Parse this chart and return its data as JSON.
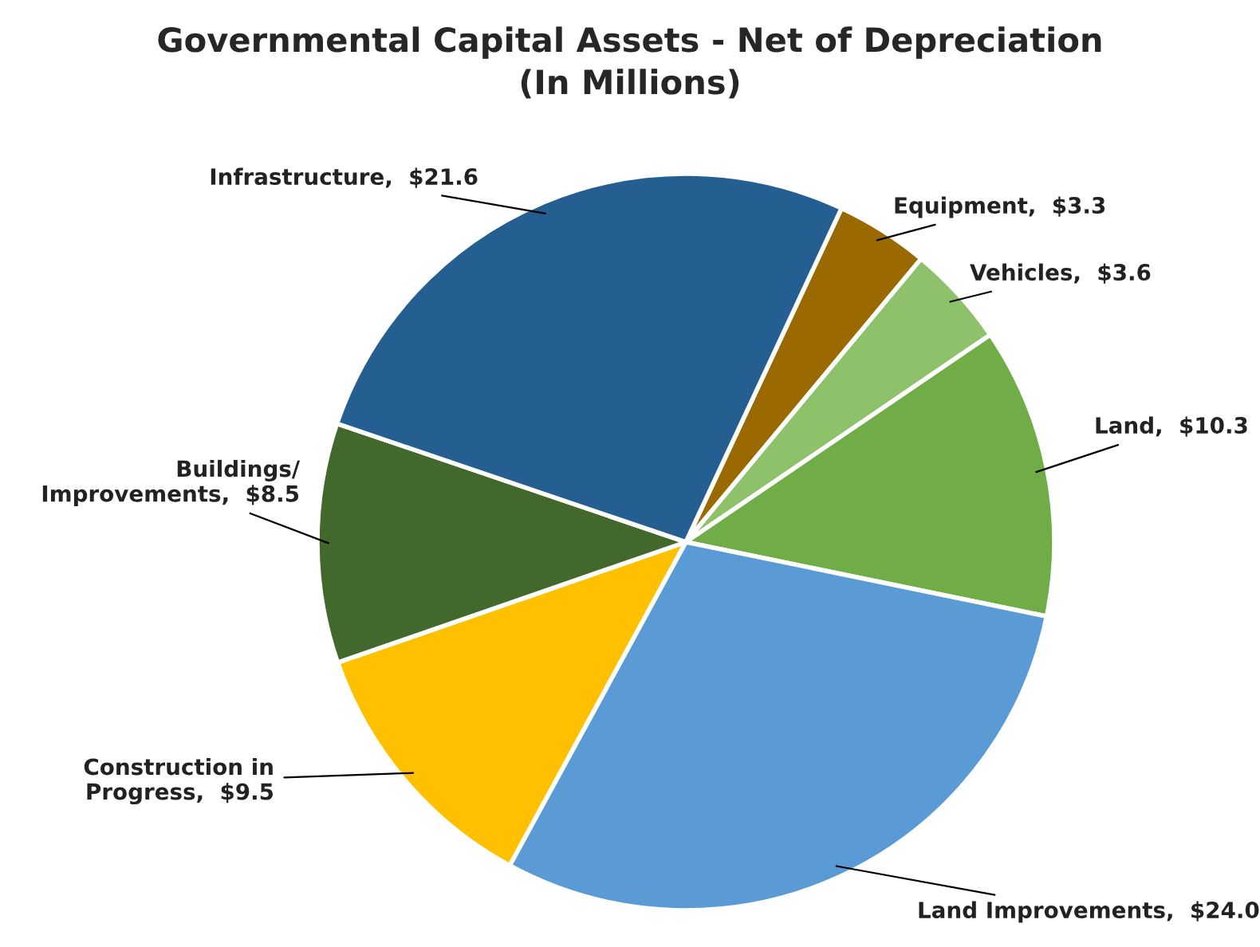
{
  "chart_data": {
    "type": "pie",
    "title": "Governmental Capital Assets - Net of Depreciation\n(In Millions)",
    "categories": [
      "Equipment",
      "Vehicles",
      "Land",
      "Land Improvements",
      "Construction in Progress",
      "Buildings/ Improvements",
      "Infrastructure"
    ],
    "values": [
      3.3,
      3.6,
      10.3,
      24.0,
      9.5,
      8.5,
      21.6
    ],
    "value_labels": [
      "$3.3",
      "$3.6",
      "$10.3",
      "$24.0",
      "$9.5",
      "$8.5",
      "$21.6"
    ],
    "colors": [
      "#9a6a00",
      "#8dc26a",
      "#70ad47",
      "#5b9bd5",
      "#ffc000",
      "#43682b",
      "#255e91"
    ],
    "legend": false
  }
}
